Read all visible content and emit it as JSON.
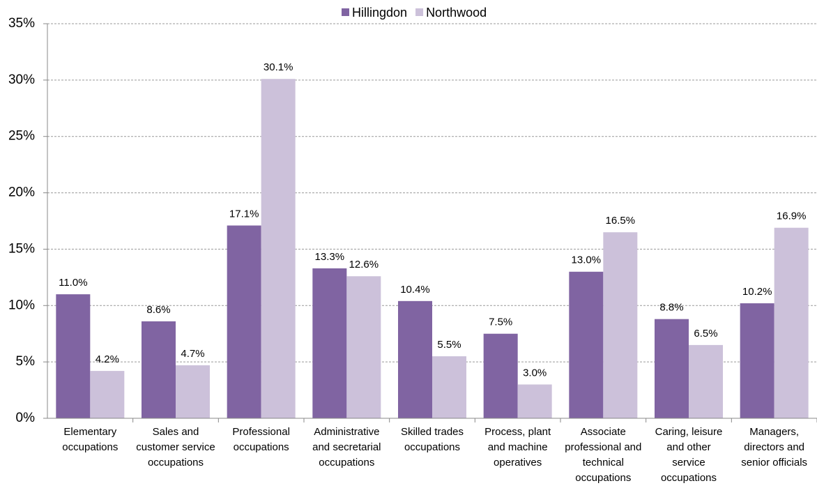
{
  "chart_data": {
    "type": "bar",
    "categories": [
      "Elementary occupations",
      "Sales and customer service occupations",
      "Professional occupations",
      "Administrative and secretarial occupations",
      "Skilled trades occupations",
      "Process, plant and machine operatives",
      "Associate professional and technical occupations",
      "Caring, leisure and other service occupations",
      "Managers, directors and senior officials"
    ],
    "series": [
      {
        "name": "Hillingdon",
        "color": "#8064a2",
        "values": [
          11.0,
          8.6,
          17.1,
          13.3,
          10.4,
          7.5,
          13.0,
          8.8,
          10.2
        ],
        "value_labels": [
          "11.0%",
          "8.6%",
          "17.1%",
          "13.3%",
          "10.4%",
          "7.5%",
          "13.0%",
          "8.8%",
          "10.2%"
        ]
      },
      {
        "name": "Northwood",
        "color": "#ccc1da",
        "values": [
          4.2,
          4.7,
          30.1,
          12.6,
          5.5,
          3.0,
          16.5,
          6.5,
          16.9
        ],
        "value_labels": [
          "4.2%",
          "4.7%",
          "30.1%",
          "12.6%",
          "5.5%",
          "3.0%",
          "16.5%",
          "6.5%",
          "16.9%"
        ]
      }
    ],
    "ylim": [
      0,
      35
    ],
    "yticks": [
      {
        "value": 0,
        "label": "0%"
      },
      {
        "value": 5,
        "label": "5%"
      },
      {
        "value": 10,
        "label": "10%"
      },
      {
        "value": 15,
        "label": "15%"
      },
      {
        "value": 20,
        "label": "20%"
      },
      {
        "value": 25,
        "label": "25%"
      },
      {
        "value": 30,
        "label": "30%"
      },
      {
        "value": 35,
        "label": "35%"
      }
    ],
    "grid": true,
    "legend": "top"
  }
}
